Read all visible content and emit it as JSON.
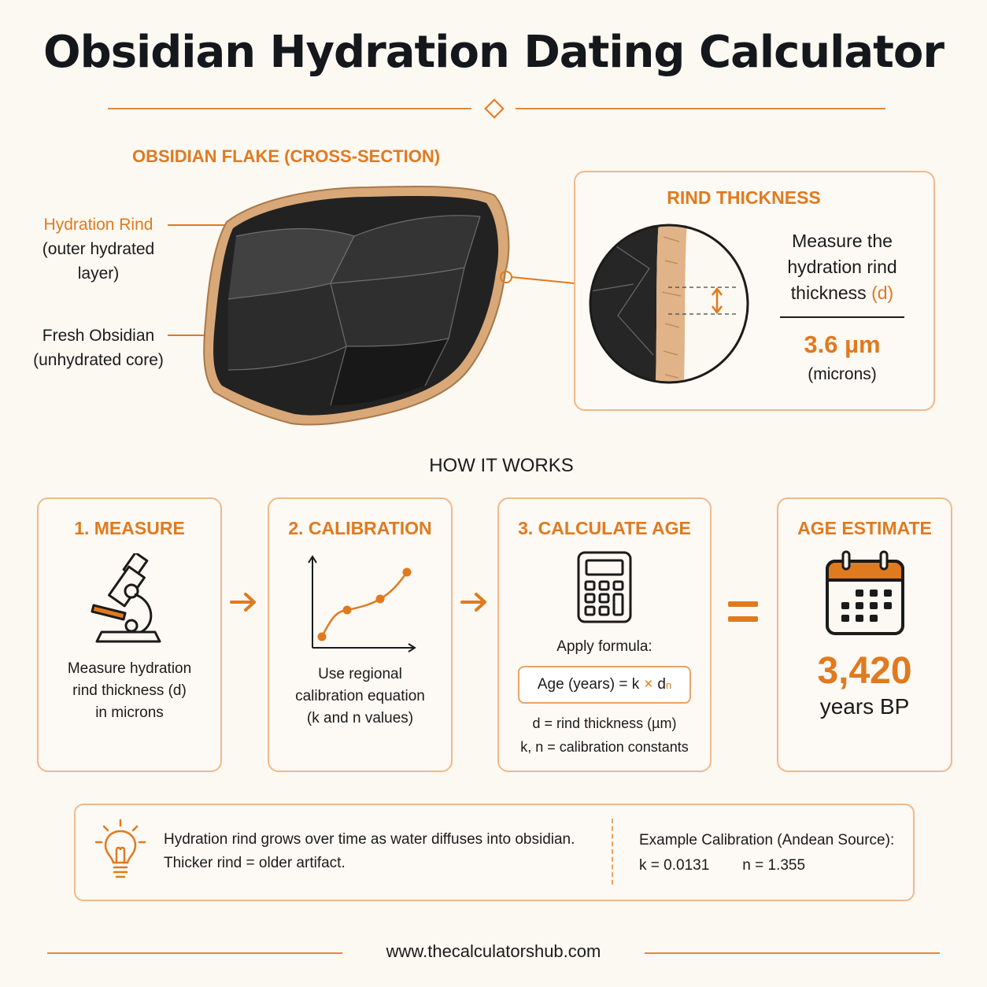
{
  "title": "Obsidian Hydration Dating Calculator",
  "flake": {
    "heading": "OBSIDIAN FLAKE (CROSS-SECTION)",
    "rind_label": "Hydration Rind",
    "rind_sub1": "(outer hydrated",
    "rind_sub2": "layer)",
    "core_label": "Fresh Obsidian",
    "core_sub": "(unhydrated core)"
  },
  "rind_panel": {
    "heading": "RIND THICKNESS",
    "text1": "Measure the",
    "text2": "hydration rind",
    "text3": "thickness",
    "symbol": "(d)",
    "value": "3.6 µm",
    "unit": "(microns)"
  },
  "how_it_works": "HOW IT WORKS",
  "steps": [
    {
      "title": "1.  MEASURE",
      "lines": [
        "Measure hydration",
        "rind thickness (d)",
        "in microns"
      ]
    },
    {
      "title": "2.  CALIBRATION",
      "lines": [
        "Use regional",
        "calibration equation",
        "(k and n values)"
      ]
    },
    {
      "title": "3.  CALCULATE AGE",
      "apply": "Apply formula:",
      "formula_left": "Age (years) = k",
      "formula_times": "×",
      "formula_right": "d",
      "formula_exp": "n",
      "lines": [
        "d = rind thickness (µm)",
        "k, n = calibration constants"
      ]
    }
  ],
  "result": {
    "title": "AGE ESTIMATE",
    "value": "3,420",
    "unit": "years BP"
  },
  "info": {
    "line1": "Hydration rind grows over time as water diffuses into obsidian.",
    "line2": "Thicker rind = older artifact.",
    "calib_title": "Example Calibration (Andean Source):",
    "k": "k = 0.0131",
    "n": "n = 1.355"
  },
  "footer": "www.thecalculatorshub.com",
  "colors": {
    "accent": "#e07a1f",
    "obsidian": "#1e1e1e",
    "rind": "#d9a878"
  }
}
